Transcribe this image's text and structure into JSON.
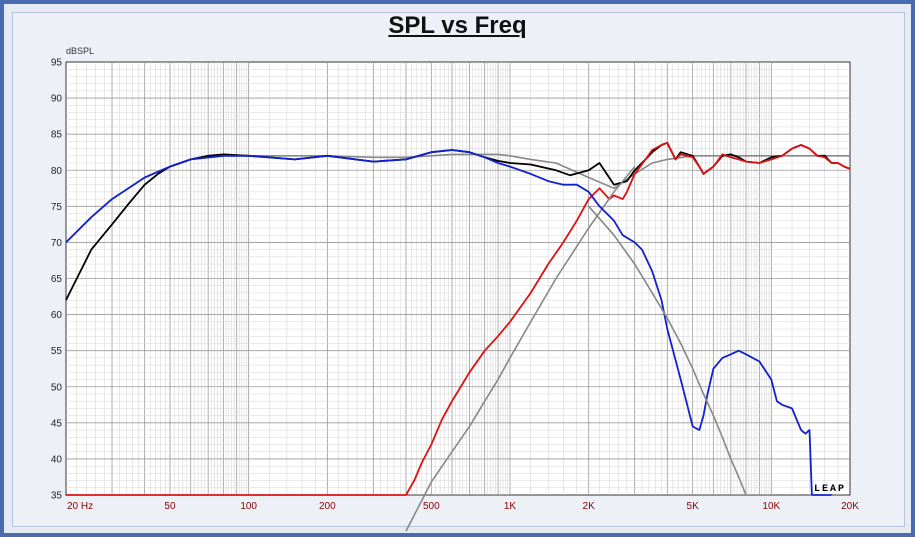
{
  "chart_data": {
    "type": "line",
    "title": "SPL vs Freq",
    "ylabel": "dBSPL",
    "xscale": "log",
    "xlim": [
      20,
      20000
    ],
    "ylim": [
      35,
      95
    ],
    "grid": true,
    "y_ticks": [
      "35",
      "40",
      "45",
      "50",
      "55",
      "60",
      "65",
      "70",
      "75",
      "80",
      "85",
      "90",
      "95"
    ],
    "x_ticks": [
      {
        "value": 20,
        "label": "20  Hz"
      },
      {
        "value": 50,
        "label": "50"
      },
      {
        "value": 100,
        "label": "100"
      },
      {
        "value": 200,
        "label": "200"
      },
      {
        "value": 500,
        "label": "500"
      },
      {
        "value": 1000,
        "label": "1K"
      },
      {
        "value": 2000,
        "label": "2K"
      },
      {
        "value": 5000,
        "label": "5K"
      },
      {
        "value": 10000,
        "label": "10K"
      },
      {
        "value": 20000,
        "label": "20K"
      }
    ],
    "watermark": "LEAP",
    "colors": {
      "black": "#000000",
      "gray": "#888888",
      "red": "#dd1111",
      "blue": "#1122cc",
      "xtick": "#8b0000"
    },
    "series": [
      {
        "color": "#888888",
        "x": [
          20,
          25,
          30,
          40,
          50,
          60,
          80,
          100,
          150,
          200,
          300,
          400,
          500,
          600,
          700,
          800,
          900,
          1000,
          1200,
          1500,
          2000,
          2500,
          3000,
          3500,
          4000,
          5000,
          6000,
          8000,
          10000,
          15000,
          20000
        ],
        "y": [
          70,
          73.5,
          76,
          79,
          80.5,
          81.5,
          82,
          82,
          82,
          82,
          81.8,
          81.8,
          82,
          82.2,
          82.2,
          82.2,
          82.2,
          82,
          81.5,
          81,
          79,
          77.5,
          79.5,
          81,
          81.5,
          82,
          82,
          82,
          82,
          82,
          82
        ]
      },
      {
        "color": "#000000",
        "x": [
          20,
          22,
          25,
          30,
          35,
          40,
          45,
          50,
          60,
          70,
          80,
          100,
          150,
          200,
          300,
          400,
          500,
          600,
          700,
          800,
          900,
          1000,
          1200,
          1500,
          1700,
          2000,
          2200,
          2500,
          2800,
          3000,
          3300,
          3500,
          3800,
          4000,
          4300,
          4500,
          5000,
          5300,
          5500,
          6000,
          6500,
          7000,
          7500,
          8000,
          9000,
          10000,
          11000,
          12000,
          13000,
          14000,
          15000,
          16000,
          17000,
          18000,
          19000,
          20000
        ],
        "y": [
          62,
          65,
          69,
          72.5,
          75.5,
          78,
          79.5,
          80.5,
          81.5,
          82,
          82.2,
          82,
          81.5,
          82,
          81.2,
          81.5,
          82.5,
          82.8,
          82.5,
          81.8,
          81.3,
          81,
          80.8,
          80,
          79.3,
          80,
          81,
          78,
          78.5,
          80,
          81.5,
          82.5,
          83.5,
          83.8,
          81.5,
          82.5,
          82,
          80.5,
          79.5,
          80.5,
          82,
          82.2,
          81.8,
          81.2,
          81,
          81.8,
          82,
          83,
          83.5,
          83,
          82,
          82,
          81,
          81,
          80.5,
          80.2
        ]
      },
      {
        "color": "#dd1111",
        "x": [
          20,
          200,
          400,
          430,
          460,
          500,
          550,
          600,
          700,
          800,
          900,
          1000,
          1200,
          1400,
          1600,
          1800,
          2000,
          2200,
          2400,
          2500,
          2700,
          2800,
          3000,
          3300,
          3500,
          3800,
          4000,
          4300,
          4500,
          5000,
          5300,
          5500,
          6000,
          6500,
          7000,
          7500,
          8000,
          9000,
          10000,
          11000,
          12000,
          13000,
          14000,
          15000,
          16000,
          17000,
          18000,
          19000,
          20000
        ],
        "y": [
          35,
          35,
          35,
          37,
          39.5,
          42,
          45.5,
          48,
          52,
          55,
          57,
          59,
          63,
          67,
          70,
          73,
          76,
          77.5,
          76,
          76.5,
          76,
          77,
          79.5,
          81.5,
          82.8,
          83.5,
          83.8,
          81.5,
          82.2,
          81.8,
          80.5,
          79.5,
          80.5,
          82.2,
          81.8,
          81.5,
          81.2,
          81,
          81.5,
          82,
          83,
          83.5,
          83,
          82,
          81.8,
          81,
          81,
          80.5,
          80.2
        ]
      },
      {
        "color": "#888888",
        "x": [
          400,
          500,
          600,
          700,
          800,
          900,
          1000,
          1200,
          1500,
          2000,
          2500,
          3000
        ],
        "y": [
          30,
          36.8,
          41,
          44.5,
          48,
          51,
          54,
          59,
          65,
          72,
          77,
          80.5
        ]
      },
      {
        "color": "#1122cc",
        "x": [
          20,
          25,
          30,
          40,
          50,
          60,
          80,
          100,
          150,
          200,
          300,
          400,
          500,
          600,
          700,
          800,
          900,
          1000,
          1200,
          1400,
          1600,
          1800,
          2000,
          2200,
          2500,
          2700,
          3000,
          3200,
          3500,
          3800,
          4000,
          4500,
          5000,
          5300,
          5500,
          5700,
          6000,
          6500,
          7000,
          7500,
          8000,
          9000,
          10000,
          10500,
          11000,
          12000,
          13000,
          13500,
          14000,
          14300,
          14500,
          14700,
          15000,
          17000
        ],
        "y": [
          70,
          73.5,
          76,
          79,
          80.5,
          81.5,
          82,
          82,
          81.5,
          82,
          81.2,
          81.5,
          82.5,
          82.8,
          82.5,
          81.8,
          81,
          80.5,
          79.5,
          78.5,
          78,
          78,
          77,
          75,
          73,
          71,
          70,
          69,
          66,
          62,
          58,
          51,
          44.5,
          44,
          46,
          49,
          52.5,
          54,
          54.5,
          55,
          54.5,
          53.5,
          51,
          48,
          47.5,
          47,
          44,
          43.5,
          44,
          35,
          35,
          35,
          35,
          35
        ]
      },
      {
        "color": "#888888",
        "x": [
          2000,
          2500,
          3000,
          3500,
          4000,
          4500,
          5000,
          5500,
          6000,
          6500,
          7000,
          7500,
          8000
        ],
        "y": [
          75,
          71,
          67,
          63,
          59.5,
          56,
          52.5,
          49,
          46,
          43,
          40,
          37.5,
          35
        ]
      }
    ]
  }
}
